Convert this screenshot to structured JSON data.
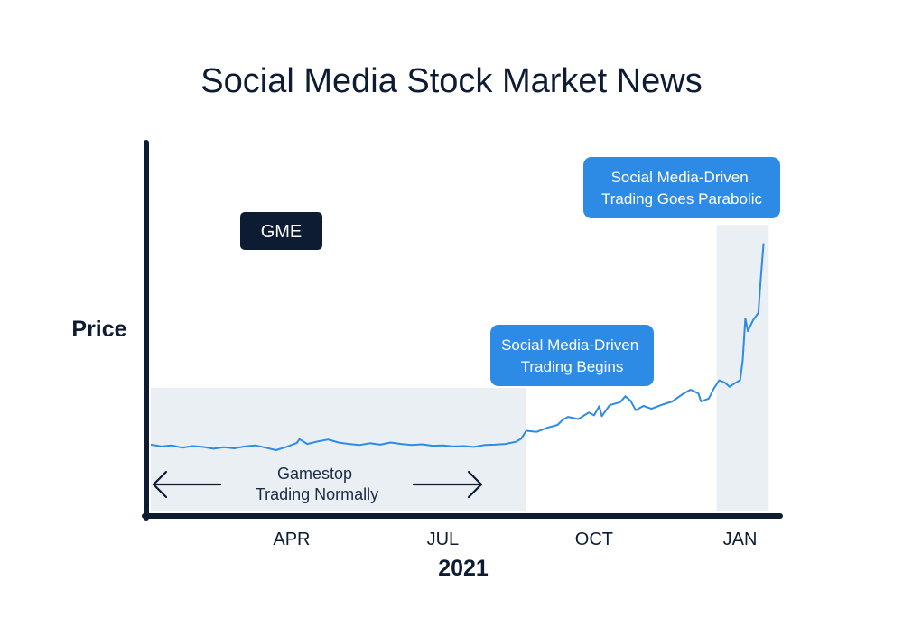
{
  "chart_data": {
    "type": "line",
    "title": "Social Media Stock Market News",
    "ylabel": "Price",
    "xlabel": "2021",
    "x_ticks": [
      "APR",
      "JUL",
      "OCT",
      "JAN"
    ],
    "x_domain": [
      0,
      12
    ],
    "y_domain": [
      0,
      100
    ],
    "series": [
      {
        "name": "GME",
        "points": [
          [
            0.0,
            18
          ],
          [
            0.2,
            17.5
          ],
          [
            0.4,
            17.8
          ],
          [
            0.6,
            17.2
          ],
          [
            0.8,
            17.6
          ],
          [
            1.0,
            17.4
          ],
          [
            1.2,
            16.9
          ],
          [
            1.4,
            17.3
          ],
          [
            1.6,
            17.0
          ],
          [
            1.8,
            17.5
          ],
          [
            2.0,
            17.8
          ],
          [
            2.2,
            17.2
          ],
          [
            2.4,
            16.5
          ],
          [
            2.6,
            17.4
          ],
          [
            2.8,
            18.5
          ],
          [
            2.85,
            19.5
          ],
          [
            3.0,
            18.2
          ],
          [
            3.2,
            18.9
          ],
          [
            3.4,
            19.4
          ],
          [
            3.6,
            18.6
          ],
          [
            3.8,
            18.2
          ],
          [
            4.0,
            17.9
          ],
          [
            4.2,
            18.4
          ],
          [
            4.4,
            18.0
          ],
          [
            4.6,
            18.6
          ],
          [
            4.8,
            18.2
          ],
          [
            5.0,
            17.9
          ],
          [
            5.2,
            18.1
          ],
          [
            5.4,
            17.7
          ],
          [
            5.6,
            17.8
          ],
          [
            5.8,
            17.5
          ],
          [
            6.0,
            17.6
          ],
          [
            6.2,
            17.4
          ],
          [
            6.4,
            17.9
          ],
          [
            6.6,
            18.0
          ],
          [
            6.8,
            18.2
          ],
          [
            7.0,
            18.8
          ],
          [
            7.1,
            19.6
          ],
          [
            7.2,
            21.8
          ],
          [
            7.4,
            21.5
          ],
          [
            7.6,
            22.6
          ],
          [
            7.8,
            23.4
          ],
          [
            7.9,
            24.8
          ],
          [
            8.0,
            25.6
          ],
          [
            8.2,
            25.0
          ],
          [
            8.4,
            26.8
          ],
          [
            8.5,
            26.0
          ],
          [
            8.6,
            28.5
          ],
          [
            8.65,
            25.8
          ],
          [
            8.8,
            28.8
          ],
          [
            9.0,
            29.6
          ],
          [
            9.1,
            31.2
          ],
          [
            9.2,
            30.0
          ],
          [
            9.3,
            27.4
          ],
          [
            9.45,
            28.6
          ],
          [
            9.6,
            27.8
          ],
          [
            9.8,
            28.9
          ],
          [
            10.0,
            29.8
          ],
          [
            10.2,
            31.8
          ],
          [
            10.35,
            33.0
          ],
          [
            10.5,
            32.0
          ],
          [
            10.55,
            29.8
          ],
          [
            10.7,
            30.6
          ],
          [
            10.8,
            33.4
          ],
          [
            10.9,
            35.6
          ],
          [
            11.0,
            35.0
          ],
          [
            11.1,
            33.8
          ],
          [
            11.2,
            34.8
          ],
          [
            11.3,
            35.6
          ],
          [
            11.35,
            41.0
          ],
          [
            11.4,
            52.5
          ],
          [
            11.45,
            49.0
          ],
          [
            11.55,
            52.0
          ],
          [
            11.65,
            54.0
          ],
          [
            11.7,
            64.0
          ],
          [
            11.75,
            73.0
          ]
        ]
      }
    ],
    "shaded_regions": [
      {
        "x_range": [
          0.0,
          7.2
        ],
        "y_top": 33.5,
        "label": "Gamestop Trading Normally"
      },
      {
        "x_range": [
          10.85,
          11.85
        ],
        "y_top": 78
      }
    ],
    "callouts": [
      {
        "lines": [
          "Social Media-Driven",
          "Trading Begins"
        ]
      },
      {
        "lines": [
          "Social Media-Driven",
          "Trading Goes Parabolic"
        ]
      }
    ],
    "legend_label": "GME",
    "colors": {
      "line": "#2d8be6",
      "callout_bg": "#2d8be6",
      "shade": "#eaeff4",
      "axis": "#0d1b33",
      "legend_bg": "#0d1b33"
    }
  }
}
